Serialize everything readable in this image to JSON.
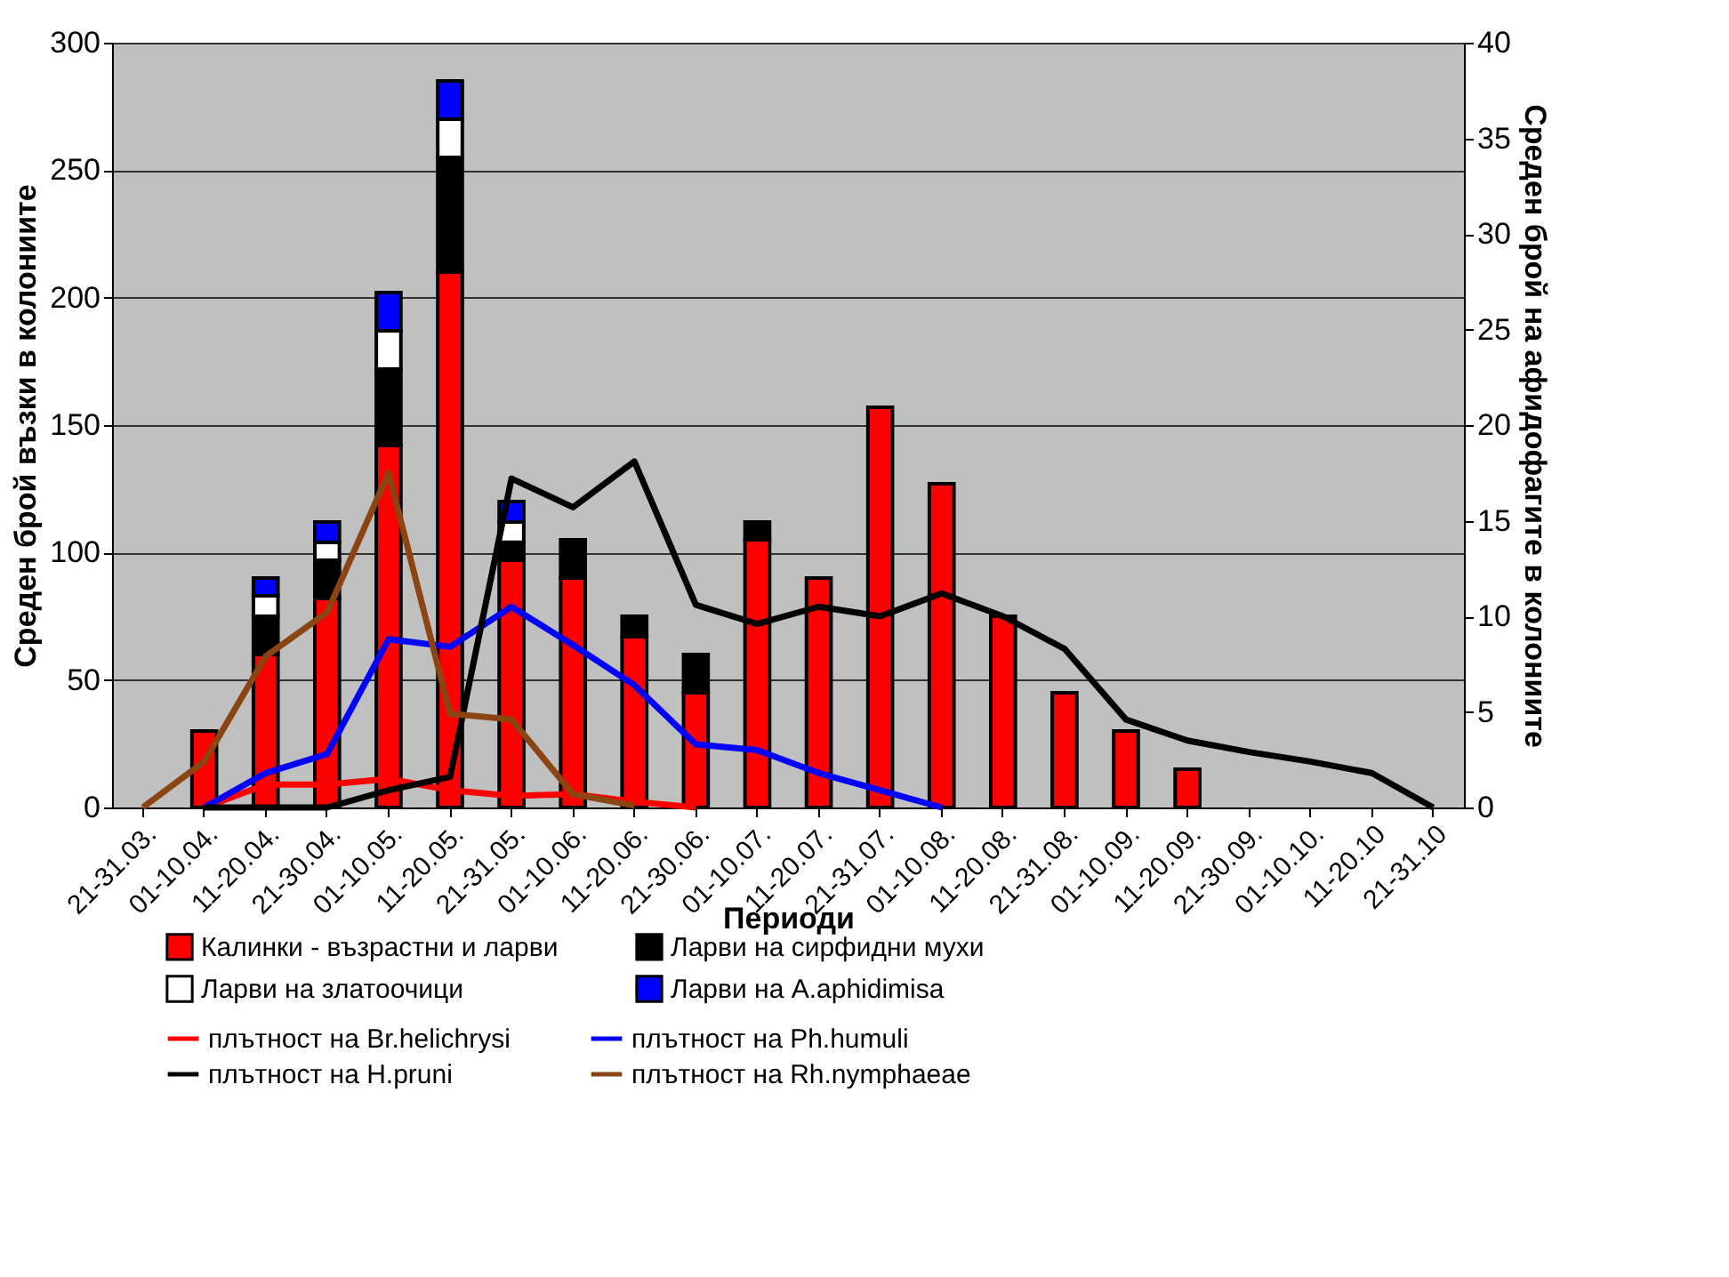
{
  "chart_data": {
    "type": "bar",
    "stacked": true,
    "xlabel": "Периоди",
    "ylabel": "Среден брой възки в колониите",
    "y2label": "Среден брой на афидофагите в колониите",
    "categories": [
      "21-31.03.",
      "01-10.04.",
      "11-20.04.",
      "21-30.04.",
      "01-10.05.",
      "11-20.05.",
      "21-31.05.",
      "01-10.06.",
      "11-20.06.",
      "21-30.06.",
      "01-10.07.",
      "11-20.07.",
      "21-31.07.",
      "01-10.08.",
      "11-20.08.",
      "21-31.08.",
      "01-10.09.",
      "11-20.09.",
      "21-30.09.",
      "01-10.10.",
      "11-20.10",
      "21-31.10"
    ],
    "series": [
      {
        "name": "Калинки - възрастни и ларви",
        "color": "#ff0000",
        "values": [
          0,
          30,
          60,
          82,
          142,
          210,
          97,
          90,
          67,
          45,
          105,
          90,
          157,
          127,
          75,
          45,
          30,
          15,
          0,
          0,
          0,
          0
        ]
      },
      {
        "name": "Ларви на сирфидни мухи",
        "color": "#000000",
        "values": [
          0,
          0,
          15,
          15,
          30,
          45,
          7,
          15,
          8,
          15,
          7,
          0,
          0,
          0,
          0,
          0,
          0,
          0,
          0,
          0,
          0,
          0
        ]
      },
      {
        "name": "Ларви на златоочици",
        "color": "#ffffff",
        "values": [
          0,
          0,
          8,
          7,
          15,
          15,
          8,
          0,
          0,
          0,
          0,
          0,
          0,
          0,
          0,
          0,
          0,
          0,
          0,
          0,
          0,
          0
        ]
      },
      {
        "name": "Ларви на A.aphidimisa",
        "color": "#0000ff",
        "values": [
          0,
          0,
          7,
          8,
          15,
          15,
          8,
          0,
          0,
          0,
          0,
          0,
          0,
          0,
          0,
          0,
          0,
          0,
          0,
          0,
          0,
          0
        ]
      },
      {
        "name": "плътност на Br.helichrysi",
        "type": "line",
        "axis": "y2",
        "color": "#ff0000",
        "values": [
          null,
          0,
          1.2,
          1.2,
          1.5,
          0.9,
          0.6,
          0.7,
          0.3,
          0,
          null,
          null,
          null,
          null,
          null,
          null,
          null,
          null,
          null,
          null,
          null,
          null
        ]
      },
      {
        "name": "плътност на Ph.humuli",
        "type": "line",
        "axis": "y2",
        "color": "#0000ff",
        "values": [
          null,
          0,
          1.8,
          2.8,
          8.8,
          8.4,
          10.5,
          8.5,
          6.4,
          3.3,
          3,
          1.8,
          0.9,
          0,
          null,
          null,
          null,
          null,
          null,
          null,
          null,
          null
        ]
      },
      {
        "name": "плътност на H.pruni",
        "type": "line",
        "axis": "y2",
        "color": "#000000",
        "values": [
          null,
          0,
          0,
          0,
          0.9,
          1.6,
          17.2,
          15.7,
          18.1,
          10.6,
          9.6,
          10.5,
          10,
          11.2,
          10,
          8.3,
          4.6,
          3.5,
          2.9,
          2.4,
          1.8,
          0
        ]
      },
      {
        "name": "плътност на Rh.nymphaeae",
        "type": "line",
        "axis": "y2",
        "color": "#8b4513",
        "values": [
          0,
          2.4,
          7.9,
          10.2,
          17.5,
          4.9,
          4.6,
          0.7,
          0.1,
          null,
          null,
          null,
          null,
          null,
          null,
          null,
          null,
          null,
          null,
          null,
          null,
          null
        ]
      }
    ],
    "ylim": [
      0,
      300
    ],
    "yticks": [
      0,
      50,
      100,
      150,
      200,
      250,
      300
    ],
    "y2lim": [
      0,
      40
    ],
    "y2ticks": [
      0,
      5,
      10,
      15,
      20,
      25,
      30,
      35,
      40
    ],
    "grid": "y",
    "legend": "bottom",
    "line_style": "solid"
  }
}
